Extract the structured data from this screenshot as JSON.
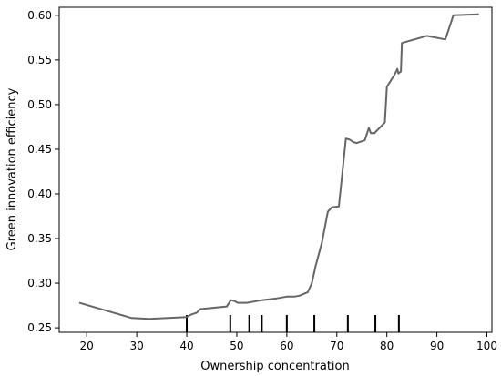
{
  "chart_data": {
    "type": "line",
    "xlabel": "Ownership concentration",
    "ylabel": "Green innovation efficiency",
    "xlim": [
      14.5,
      101
    ],
    "ylim": [
      0.245,
      0.609
    ],
    "x_ticks": [
      20,
      30,
      40,
      50,
      60,
      70,
      80,
      90,
      100
    ],
    "y_ticks": [
      0.25,
      0.3,
      0.35,
      0.4,
      0.45,
      0.5,
      0.55,
      0.6
    ],
    "grid": false,
    "line_color": "#666666",
    "rug_color": "#000000",
    "series": [
      {
        "x": [
          18.5,
          29,
          32.5,
          40,
          40.9,
          42,
          42.7,
          48,
          48.8,
          49.6,
          50.2,
          52,
          54,
          55,
          56.5,
          58,
          60,
          61.5,
          62.5,
          64.2,
          65,
          65.8,
          67,
          68.2,
          69,
          70.4,
          71.8,
          72.5,
          73.3,
          74,
          75.6,
          76.4,
          76.8,
          77.5,
          79.6,
          80,
          81.5,
          82.1,
          82.3,
          82.8,
          83,
          88,
          91.7,
          93.3,
          98.4
        ],
        "y": [
          0.278,
          0.261,
          0.26,
          0.262,
          0.265,
          0.267,
          0.271,
          0.274,
          0.281,
          0.28,
          0.278,
          0.278,
          0.28,
          0.281,
          0.282,
          0.283,
          0.285,
          0.285,
          0.286,
          0.29,
          0.3,
          0.32,
          0.345,
          0.38,
          0.385,
          0.386,
          0.462,
          0.461,
          0.458,
          0.457,
          0.46,
          0.474,
          0.468,
          0.468,
          0.48,
          0.52,
          0.533,
          0.54,
          0.535,
          0.537,
          0.569,
          0.577,
          0.573,
          0.6,
          0.601
        ]
      }
    ],
    "rug_x": [
      40,
      48.7,
      52.5,
      55,
      60,
      65.5,
      72.2,
      77.7,
      82.4
    ]
  }
}
